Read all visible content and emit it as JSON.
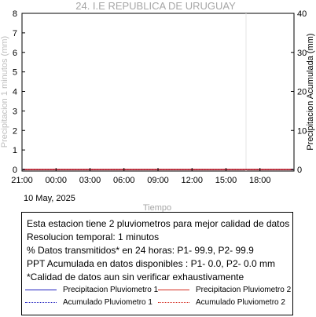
{
  "chart_data": {
    "type": "line",
    "title": "24. I.E REPUBLICA DE URUGUAY",
    "ylabel_left": "Precipitacion 1 minutos (mm)",
    "ylabel_right": "Precipitacion Acumulada (mm)",
    "xlabel": "Tiempo",
    "date_label": "10 May, 2025",
    "x_ticks": [
      "21:00",
      "00:00",
      "03:00",
      "06:00",
      "09:00",
      "12:00",
      "15:00",
      "18:00"
    ],
    "y_left_ticks": [
      "0",
      "1",
      "2",
      "3",
      "4",
      "5",
      "6",
      "7",
      "8"
    ],
    "y_right_ticks": [
      "0",
      "10",
      "20",
      "30",
      "40"
    ],
    "ylim_left": [
      0,
      8
    ],
    "ylim_right": [
      0,
      40
    ],
    "xlim_hours": [
      -3,
      21
    ],
    "grid": false,
    "series": [
      {
        "name": "Precipitacion Pluviometro 1",
        "color": "#1f1fbf",
        "style": "solid",
        "axis": "left",
        "values": [
          0,
          0
        ]
      },
      {
        "name": "Precipitacion Pluviometro 2",
        "color": "#d42a1e",
        "style": "solid",
        "axis": "left",
        "values": [
          0,
          0
        ]
      },
      {
        "name": "Acumulado Pluviometro 1",
        "color": "#1f1fbf",
        "style": "dotted",
        "axis": "right",
        "values": [
          0,
          0
        ]
      },
      {
        "name": "Acumulado Pluviometro 2",
        "color": "#d42a1e",
        "style": "dotted",
        "axis": "right",
        "values": [
          0,
          0
        ]
      }
    ]
  },
  "info": {
    "line1": "Esta estacion tiene 2 pluviometros para mejor calidad de datos",
    "line2": "Resolucion temporal: 1 minutos",
    "line3": "% Datos transmitidos* en 24 horas: P1- 99.9, P2- 99.9",
    "line4": "PPT Acumulada en datos disponibles : P1-  0.0, P2-  0.0 mm",
    "line5": "*Calidad de datos aun sin verificar exhaustivamente"
  },
  "legend": [
    "Precipitacion Pluviometro 1",
    "Precipitacion Pluviometro 2",
    "Acumulado Pluviometro 1",
    "Acumulado Pluviometro 2"
  ]
}
